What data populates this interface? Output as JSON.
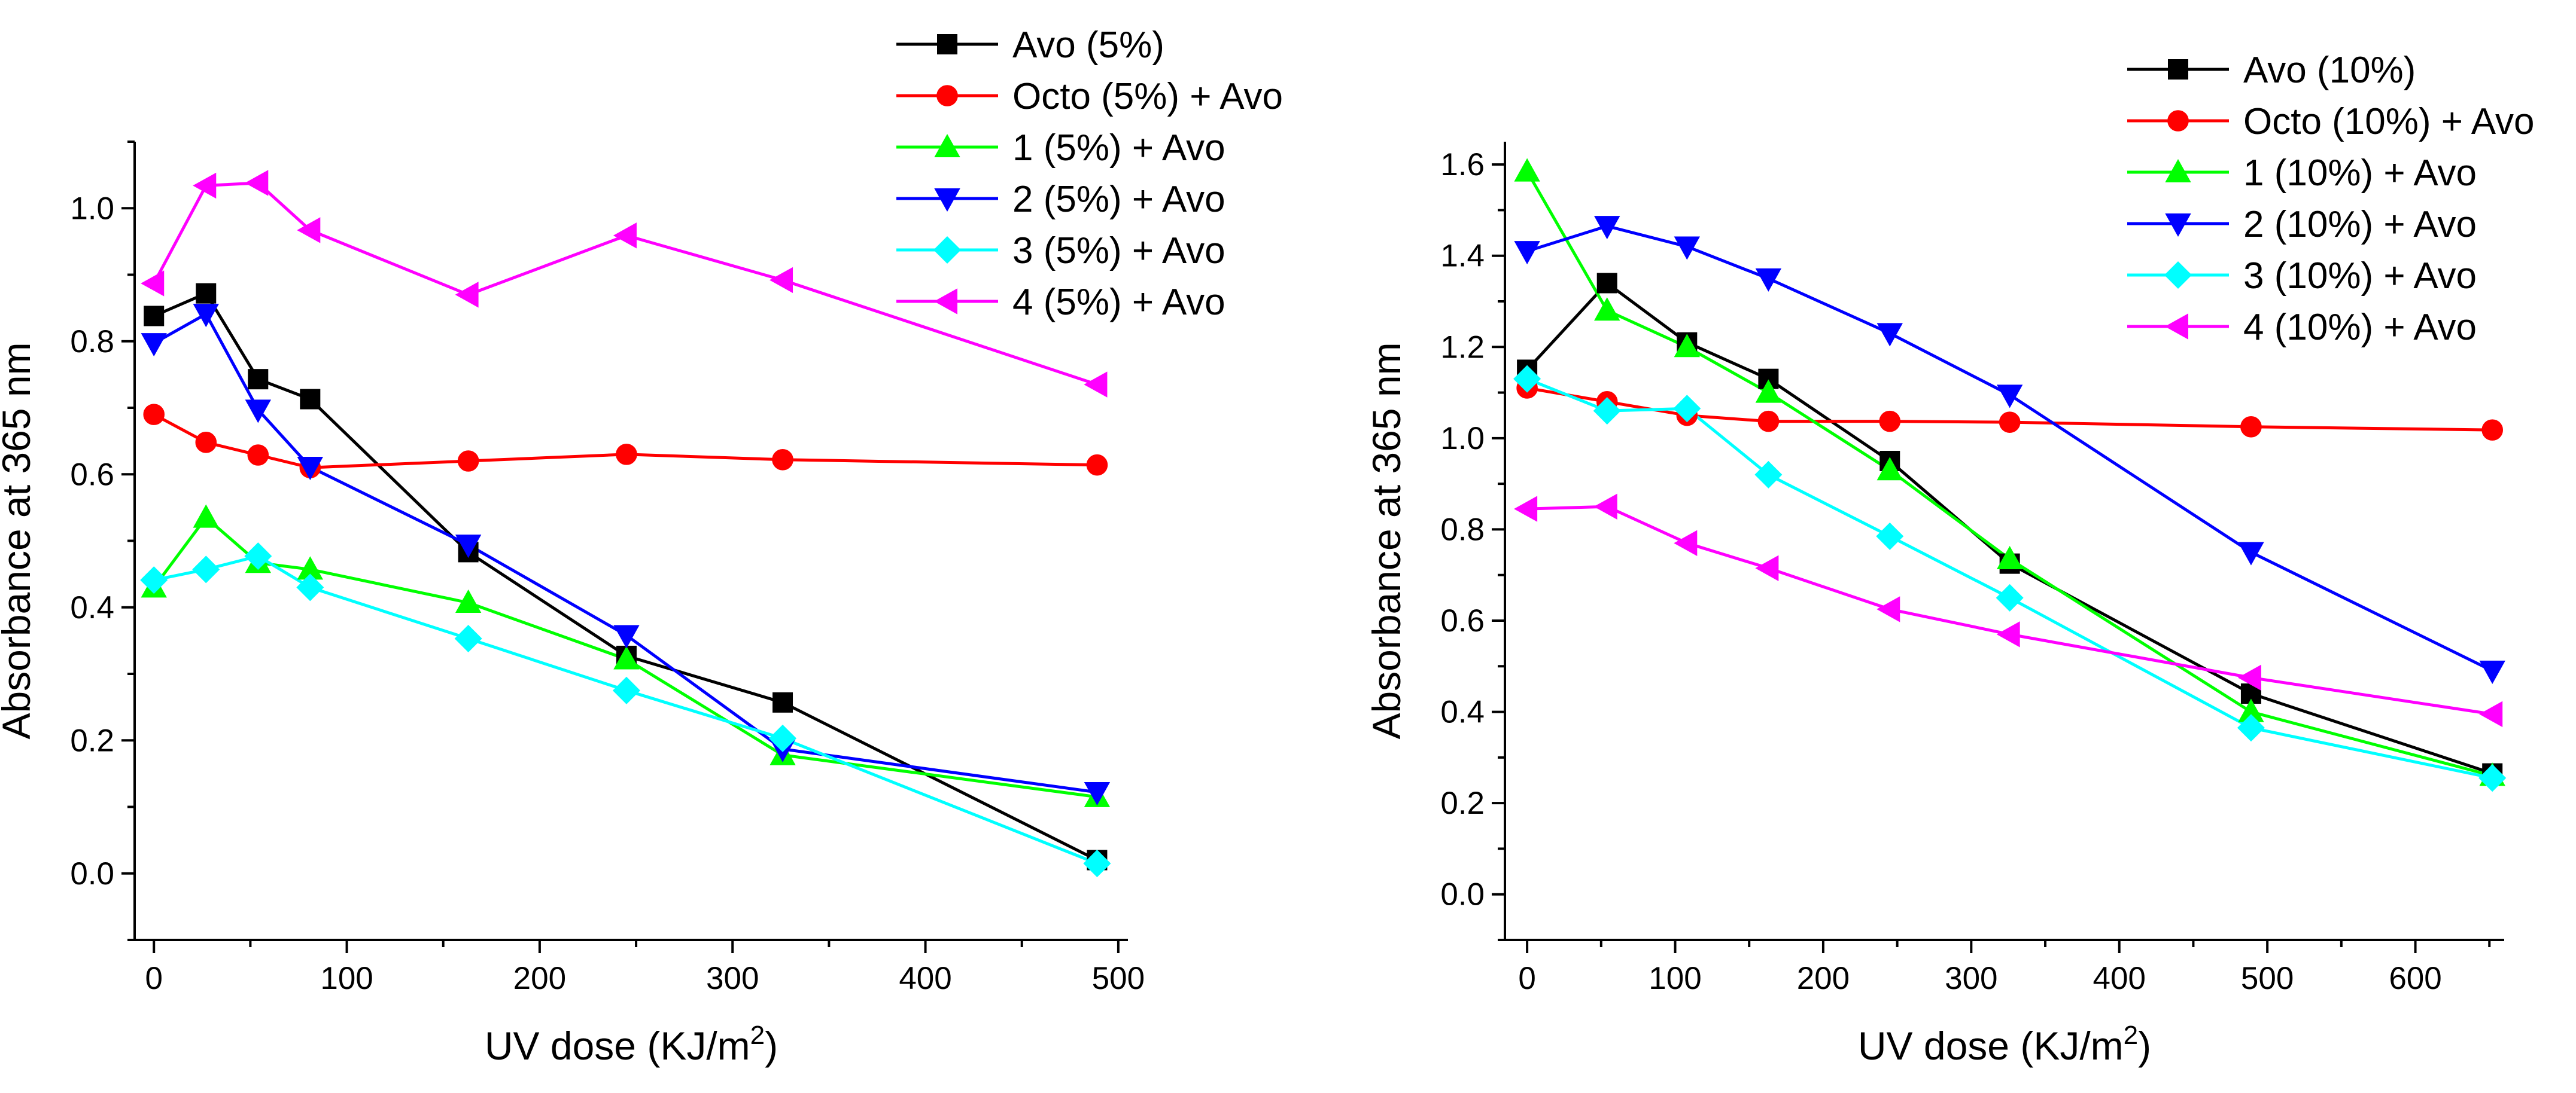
{
  "chart_data": [
    {
      "type": "line",
      "xlabel": "UV dose (KJ/m",
      "xlabel_sup": "2",
      "xlabel_close": ")",
      "ylabel": "Absorbance at 365 nm",
      "xlim": [
        -10,
        505
      ],
      "ylim": [
        -0.1,
        1.1
      ],
      "xticks": [
        0,
        100,
        200,
        300,
        400,
        500
      ],
      "yticks": [
        0.0,
        0.2,
        0.4,
        0.6,
        0.8,
        1.0
      ],
      "x_tick_labels": [
        "0",
        "100",
        "200",
        "300",
        "400",
        "500"
      ],
      "y_tick_labels": [
        "0.0",
        "0.2",
        "0.4",
        "0.6",
        "0.8",
        "1.0"
      ],
      "legend_position": "top-right",
      "series": [
        {
          "name": "Avo (5%)",
          "color": "#000000",
          "marker": "square",
          "x": [
            0,
            27,
            54,
            81,
            163,
            245,
            326,
            489
          ],
          "y": [
            0.838,
            0.872,
            0.743,
            0.713,
            0.483,
            0.327,
            0.257,
            0.02
          ]
        },
        {
          "name": "Octo (5%) + Avo",
          "color": "#ff0000",
          "marker": "circle",
          "x": [
            0,
            27,
            54,
            81,
            163,
            245,
            326,
            489
          ],
          "y": [
            0.69,
            0.648,
            0.629,
            0.61,
            0.62,
            0.63,
            0.622,
            0.614
          ]
        },
        {
          "name": "1 (5%) + Avo",
          "color": "#00ff00",
          "marker": "triangle-up",
          "x": [
            0,
            27,
            54,
            81,
            163,
            245,
            326,
            489
          ],
          "y": [
            0.43,
            0.535,
            0.467,
            0.457,
            0.407,
            0.322,
            0.178,
            0.115
          ]
        },
        {
          "name": "2 (5%) + Avo",
          "color": "#0000ff",
          "marker": "triangle-down",
          "x": [
            0,
            27,
            54,
            81,
            163,
            245,
            326,
            489
          ],
          "y": [
            0.797,
            0.841,
            0.697,
            0.611,
            0.494,
            0.358,
            0.187,
            0.122
          ]
        },
        {
          "name": "3 (5%) + Avo",
          "color": "#00ffff",
          "marker": "diamond",
          "x": [
            0,
            27,
            54,
            81,
            163,
            245,
            326,
            489
          ],
          "y": [
            0.441,
            0.457,
            0.477,
            0.43,
            0.353,
            0.275,
            0.203,
            0.015
          ]
        },
        {
          "name": "4 (5%) + Avo",
          "color": "#ff00ff",
          "marker": "triangle-left",
          "x": [
            0,
            27,
            54,
            81,
            163,
            245,
            326,
            489
          ],
          "y": [
            0.887,
            1.034,
            1.038,
            0.967,
            0.87,
            0.959,
            0.892,
            0.735
          ]
        }
      ]
    },
    {
      "type": "line",
      "xlabel": "UV dose (KJ/m",
      "xlabel_sup": "2",
      "xlabel_close": ")",
      "ylabel": "Absorbance at 365 nm",
      "xlim": [
        -15,
        660
      ],
      "ylim": [
        -0.1,
        1.65
      ],
      "xticks": [
        0,
        100,
        200,
        300,
        400,
        500,
        600
      ],
      "yticks": [
        0.0,
        0.2,
        0.4,
        0.6,
        0.8,
        1.0,
        1.2,
        1.4,
        1.6
      ],
      "x_tick_labels": [
        "0",
        "100",
        "200",
        "300",
        "400",
        "500",
        "600"
      ],
      "y_tick_labels": [
        "0.0",
        "0.2",
        "0.4",
        "0.6",
        "0.8",
        "1.0",
        "1.2",
        "1.4",
        "1.6"
      ],
      "legend_position": "top-right",
      "series": [
        {
          "name": "Avo (10%)",
          "color": "#000000",
          "marker": "square",
          "x": [
            0,
            54,
            108,
            163,
            245,
            326,
            489,
            652
          ],
          "y": [
            1.15,
            1.34,
            1.21,
            1.13,
            0.95,
            0.725,
            0.44,
            0.265
          ]
        },
        {
          "name": "Octo (10%) + Avo",
          "color": "#ff0000",
          "marker": "circle",
          "x": [
            0,
            54,
            108,
            163,
            245,
            326,
            489,
            652
          ],
          "y": [
            1.11,
            1.08,
            1.05,
            1.037,
            1.037,
            1.035,
            1.025,
            1.018
          ]
        },
        {
          "name": "1 (10%) + Avo",
          "color": "#00ff00",
          "marker": "triangle-up",
          "x": [
            0,
            54,
            108,
            163,
            245,
            326,
            489,
            652
          ],
          "y": [
            1.585,
            1.28,
            1.2,
            1.1,
            0.93,
            0.735,
            0.4,
            0.26
          ]
        },
        {
          "name": "2 (10%) + Avo",
          "color": "#0000ff",
          "marker": "triangle-down",
          "x": [
            0,
            54,
            108,
            163,
            245,
            326,
            489,
            652
          ],
          "y": [
            1.41,
            1.465,
            1.42,
            1.35,
            1.23,
            1.095,
            0.75,
            0.49
          ]
        },
        {
          "name": "3 (10%) + Avo",
          "color": "#00ffff",
          "marker": "diamond",
          "x": [
            0,
            54,
            108,
            163,
            245,
            326,
            489,
            652
          ],
          "y": [
            1.13,
            1.06,
            1.065,
            0.92,
            0.785,
            0.65,
            0.365,
            0.255
          ]
        },
        {
          "name": "4 (10%) + Avo",
          "color": "#ff00ff",
          "marker": "triangle-left",
          "x": [
            0,
            54,
            108,
            163,
            245,
            326,
            489,
            652
          ],
          "y": [
            0.845,
            0.85,
            0.77,
            0.715,
            0.625,
            0.57,
            0.475,
            0.395
          ]
        }
      ]
    }
  ]
}
